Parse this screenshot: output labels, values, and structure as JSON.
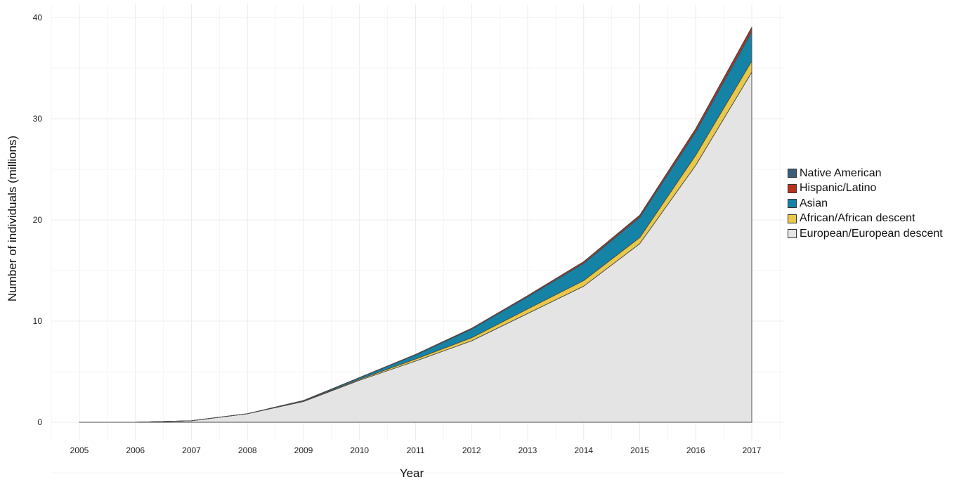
{
  "chart_data": {
    "type": "area",
    "stacked": true,
    "x": [
      2005,
      2006,
      2007,
      2008,
      2009,
      2010,
      2011,
      2012,
      2013,
      2014,
      2015,
      2016,
      2017
    ],
    "xlabel": "Year",
    "ylabel": "Number of individuals (millions)",
    "ylim": [
      0,
      40
    ],
    "yticks": [
      0,
      10,
      20,
      30,
      40
    ],
    "grid": true,
    "legend_position": "right",
    "series": [
      {
        "name": "European/European descent",
        "color": "#e4e4e4",
        "values": [
          0,
          0,
          0.15,
          0.85,
          2.05,
          4.15,
          6.05,
          8.05,
          10.75,
          13.45,
          17.65,
          25.4,
          34.6
        ]
      },
      {
        "name": "African/African descent",
        "color": "#e9c84a",
        "values": [
          0,
          0,
          0,
          0,
          0.05,
          0.1,
          0.2,
          0.3,
          0.45,
          0.55,
          0.6,
          1.0,
          1.1
        ]
      },
      {
        "name": "Asian",
        "color": "#1583a6",
        "values": [
          0,
          0,
          0,
          0,
          0.05,
          0.15,
          0.4,
          0.85,
          1.2,
          1.7,
          2.0,
          2.3,
          2.9
        ]
      },
      {
        "name": "Hispanic/Latino",
        "color": "#b7321f",
        "values": [
          0,
          0,
          0,
          0,
          0,
          0.02,
          0.05,
          0.08,
          0.1,
          0.15,
          0.18,
          0.28,
          0.4
        ]
      },
      {
        "name": "Native American",
        "color": "#3d5e78",
        "values": [
          0,
          0,
          0,
          0,
          0,
          0,
          0.01,
          0.01,
          0.02,
          0.03,
          0.04,
          0.05,
          0.06
        ]
      }
    ],
    "legend_order": [
      "Native American",
      "Hispanic/Latino",
      "Asian",
      "African/African descent",
      "European/European descent"
    ]
  }
}
